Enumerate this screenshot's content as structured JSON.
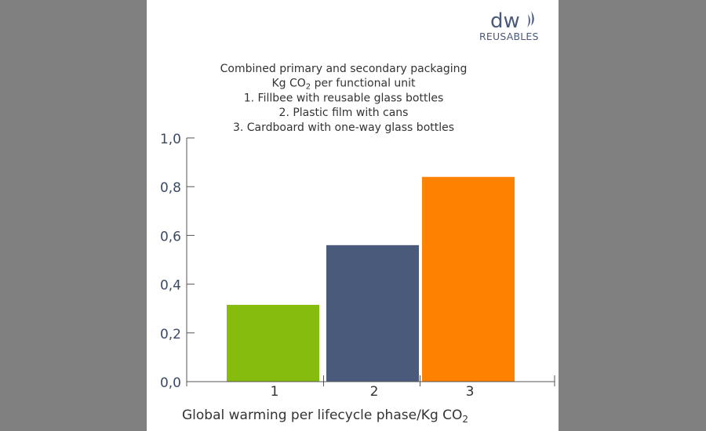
{
  "logo": {
    "mark": "dw",
    "text": "REUSABLES"
  },
  "chart_data": {
    "type": "bar",
    "title_lines": [
      "Combined primary and secondary packaging",
      {
        "prefix": "Kg CO",
        "sub": "2",
        "suffix": " per functional unit"
      },
      "1. Fillbee with reusable glass bottles",
      "2. Plastic film with cans",
      "3. Cardboard with one-way glass bottles"
    ],
    "categories": [
      "1",
      "2",
      "3"
    ],
    "values": [
      0.315,
      0.56,
      0.84
    ],
    "colors": [
      "#86bc0e",
      "#4a5a7a",
      "#ff8100"
    ],
    "ylim": [
      0,
      1
    ],
    "yticks": [
      0,
      0.2,
      0.4,
      0.6,
      0.8,
      1.0
    ],
    "ytick_labels": [
      "0,0",
      "0,2",
      "0,4",
      "0,6",
      "0,8",
      "1,0"
    ],
    "xlabel": {
      "prefix": "Global warming per lifecycle phase/Kg CO",
      "sub": "2"
    },
    "ylabel": "",
    "grid": false
  }
}
